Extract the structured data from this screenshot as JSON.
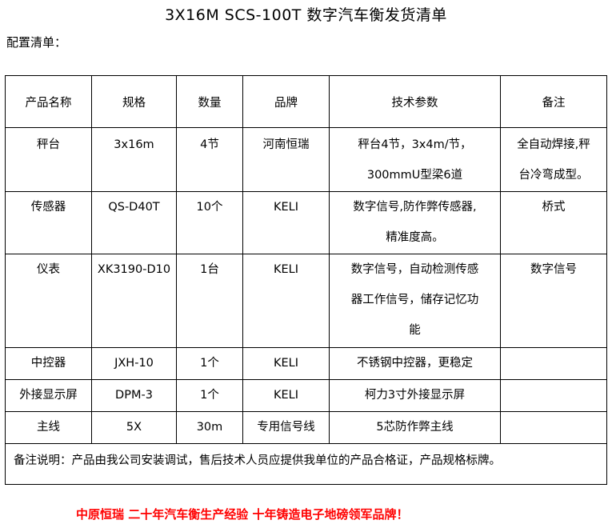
{
  "title": "3X16M SCS-100T 数字汽车衡发货清单",
  "subtitle": "配置清单：",
  "table": {
    "headers": [
      "产品名称",
      "规格",
      "数量",
      "品牌",
      "技术参数",
      "备注"
    ],
    "rows": [
      {
        "name": [
          "秤台"
        ],
        "spec": [
          "3x16m"
        ],
        "qty": [
          "4节"
        ],
        "brand": [
          "河南恒瑞"
        ],
        "tech": [
          "秤台4节，3x4m/节，",
          "300mmU型梁6道"
        ],
        "note": [
          "全自动焊接,秤",
          "台冷弯成型。"
        ]
      },
      {
        "name": [
          "传感器"
        ],
        "spec": [
          "QS-D40T"
        ],
        "qty": [
          "10个"
        ],
        "brand": [
          "KELI"
        ],
        "tech": [
          "数字信号,防作弊传感器,",
          "精准度高。"
        ],
        "note": [
          "桥式"
        ]
      },
      {
        "name": [
          "仪表"
        ],
        "spec": [
          "XK3190-D10"
        ],
        "qty": [
          "1台"
        ],
        "brand": [
          "KELI"
        ],
        "tech": [
          "数字信号，自动检测传感",
          "器工作信号，储存记忆功",
          "能"
        ],
        "note": [
          "数字信号"
        ]
      },
      {
        "name": [
          "中控器"
        ],
        "spec": [
          "JXH-10"
        ],
        "qty": [
          "1个"
        ],
        "brand": [
          "KELI"
        ],
        "tech": [
          "不锈钢中控器，更稳定"
        ],
        "note": [
          ""
        ]
      },
      {
        "name": [
          "外接显示屏"
        ],
        "spec": [
          "DPM-3"
        ],
        "qty": [
          "1个"
        ],
        "brand": [
          "KELI"
        ],
        "tech": [
          "柯力3寸外接显示屏"
        ],
        "note": [
          ""
        ]
      },
      {
        "name": [
          "主线"
        ],
        "spec": [
          "5X"
        ],
        "qty": [
          "30m"
        ],
        "brand": [
          "专用信号线"
        ],
        "tech": [
          "5芯防作弊主线"
        ],
        "note": [
          ""
        ]
      }
    ],
    "remarks": "备注说明：产品由我公司安装调试，售后技术人员应提供我单位的产品合格证，产品规格标牌。"
  },
  "footer": "中原恒瑞 二十年汽车衡生产经验 十年铸造电子地磅领军品牌！",
  "colors": {
    "footer": "#ff0000",
    "border": "#000000"
  }
}
